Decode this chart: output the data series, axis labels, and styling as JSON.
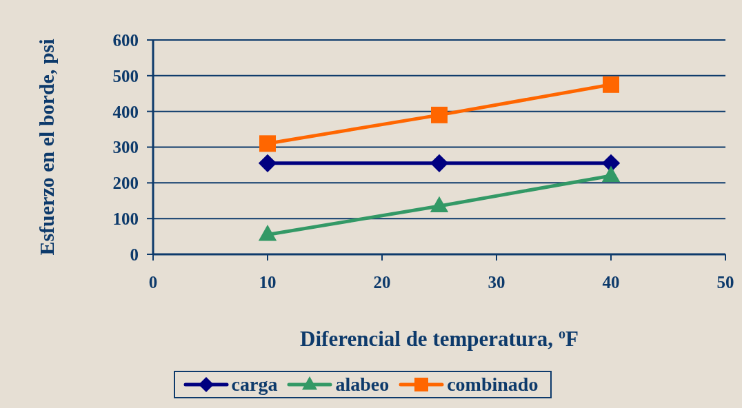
{
  "chart_data": {
    "type": "line",
    "xlabel": "Diferencial de temperatura, $^{o}$F",
    "ylabel": "Esfuerzo en el borde, psi",
    "x": [
      10,
      25,
      40
    ],
    "series": [
      {
        "name": "carga",
        "color": "#000080",
        "marker": "diamond",
        "values": [
          255,
          255,
          255
        ]
      },
      {
        "name": "alabeo",
        "color": "#339966",
        "marker": "triangle",
        "values": [
          55,
          135,
          220
        ]
      },
      {
        "name": "combinado",
        "color": "#ff6600",
        "marker": "square",
        "values": [
          310,
          390,
          475
        ]
      }
    ],
    "xlim": [
      0,
      50
    ],
    "xticks": [
      0,
      10,
      20,
      30,
      40,
      50
    ],
    "ylim": [
      0,
      600
    ],
    "yticks": [
      0,
      100,
      200,
      300,
      400,
      500,
      600
    ],
    "grid": "y",
    "legend": "bottom",
    "line_style": "solid"
  }
}
